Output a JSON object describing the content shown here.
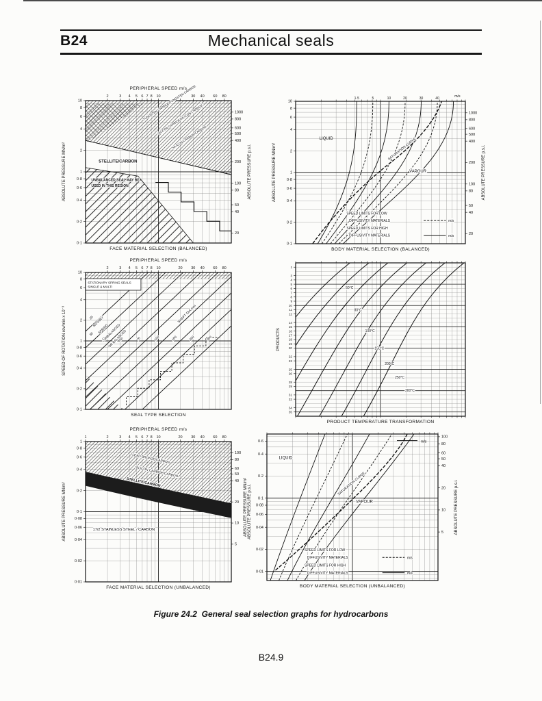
{
  "page": {
    "header_code": "B24",
    "header_title": "Mechanical seals",
    "caption_label": "Figure 24.2",
    "caption_text": "General seal selection graphs for hydrocarbons",
    "footer": "B24.9"
  },
  "chart_data": [
    {
      "id": "face-balanced",
      "type": "line",
      "title": "FACE MATERIAL SELECTION (BALANCED)",
      "top_axis": {
        "label": "PERIPHERAL SPEED m/s",
        "scale": "log",
        "range": [
          1,
          100
        ],
        "ticks": [
          "2",
          "3",
          "4",
          "5",
          "6",
          "7",
          "8",
          "10",
          "20",
          "30",
          "40",
          "60",
          "80"
        ]
      },
      "left_axis": {
        "label": "ABSOLUTE PRESSURE MN/m²",
        "scale": "log",
        "range": [
          10,
          0.1
        ],
        "ticks": [
          "10",
          "8",
          "6",
          "4",
          "2",
          "1",
          "0·8",
          "0·6",
          "0·4",
          "0·2",
          "0·1"
        ]
      },
      "right_axis": {
        "label": "ABSOLUTE PRESSURE p.s.i.",
        "scale": "log",
        "range": [
          1450,
          14.5
        ],
        "ticks": [
          "1000",
          "800",
          "600",
          "500",
          "400",
          "200",
          "100",
          "80",
          "50",
          "40",
          "20"
        ]
      },
      "grid": "log-log",
      "annotations": [
        {
          "text": "TUNGSTEN CARBIDE/TUNGSTEN CARBIDE",
          "x": 0.4,
          "y": 0.14,
          "rotate": -33,
          "halo": true,
          "size": 4.4
        },
        {
          "text": "SILICON CARBIDE/SILICON CARBIDE",
          "x": 0.5,
          "y": 0.24,
          "rotate": -33,
          "halo": true,
          "size": 4.4
        },
        {
          "text": "SILICON CARBIDE/CARBON",
          "x": 0.6,
          "y": 0.34,
          "rotate": -33,
          "halo": true,
          "size": 4.4
        },
        {
          "text": "STELLITE/CARBON",
          "x": 0.09,
          "y": 0.435,
          "bold": true,
          "halo": true,
          "size": 6
        },
        {
          "text": "UNBALANCED SEAL MAY BE",
          "x": 0.04,
          "y": 0.565,
          "bold": true,
          "halo": true,
          "size": 5
        },
        {
          "text": "USED IN THIS REGION",
          "x": 0.04,
          "y": 0.605,
          "bold": true,
          "halo": true,
          "size": 5
        }
      ]
    },
    {
      "id": "body-balanced",
      "type": "line",
      "title": "BODY MATERIAL SELECTION (BALANCED)",
      "top_axis": {
        "scale": "log",
        "range": [
          1,
          100
        ],
        "ticks": []
      },
      "left_axis": {
        "label": "ABSOLUTE PRESSURE MN/m²",
        "scale": "log",
        "range": [
          10,
          0.1
        ],
        "ticks": [
          "10",
          "8",
          "6",
          "4",
          "2",
          "1",
          "0·8",
          "0·6",
          "0·4",
          "0·2",
          "0·1"
        ]
      },
      "right_axis": {
        "label": "ABSOLUTE PRESSURE p.s.i.",
        "scale": "log",
        "range": [
          1450,
          14.5
        ],
        "ticks": [
          "1000",
          "800",
          "600",
          "500",
          "400",
          "200",
          "100",
          "80",
          "50",
          "40",
          "20"
        ]
      },
      "grid": "log-log",
      "curve_labels": [
        "1·5",
        "5",
        "10",
        "20",
        "30",
        "40"
      ],
      "unit_label": "m/s",
      "annotations": [
        {
          "text": "LIQUID",
          "x": 0.14,
          "y": 0.27,
          "size": 6
        },
        {
          "text": "VAPOUR",
          "x": 0.67,
          "y": 0.5,
          "size": 6,
          "halo": true
        },
        {
          "text": "SATURATION CURVE",
          "x": 0.55,
          "y": 0.415,
          "rotate": -38,
          "size": 5,
          "halo": true
        },
        {
          "text": "m/s",
          "x": 0.97,
          "y": -0.03,
          "anchor": "end",
          "size": 5.2
        }
      ],
      "legend": [
        {
          "lines": [
            "SPEED LIMITS FOR LOW",
            "DIFFUSIVITY MATERIALS"
          ],
          "line_style": "dashed",
          "unit": "m/s"
        },
        {
          "lines": [
            "SPEED LIMITS FOR HIGH",
            "DIFFUSIVITY MATERIALS"
          ],
          "line_style": "solid",
          "unit": "m/s"
        }
      ]
    },
    {
      "id": "seal-type",
      "type": "line",
      "title": "SEAL TYPE SELECTION",
      "top_axis": {
        "label": "PERIPHERAL SPEED m/s",
        "scale": "log",
        "range": [
          1,
          100
        ],
        "ticks": [
          "2",
          "3",
          "4",
          "5",
          "6",
          "7",
          "8",
          "10",
          "20",
          "30",
          "40",
          "60",
          "80"
        ]
      },
      "left_axis": {
        "label": "SPEED OF ROTATION rev/min x 10⁻³",
        "scale": "log",
        "range": [
          10,
          0.1
        ],
        "ticks": [
          "10",
          "8",
          "6",
          "4",
          "2",
          "1",
          "0·8",
          "0·6",
          "0·4",
          "0·2",
          "0·1"
        ]
      },
      "grid": "log-log",
      "shaft_dia_values": [
        "25",
        "30",
        "40",
        "50",
        "75",
        "100",
        "150",
        "200",
        "300"
      ],
      "annotations": [
        {
          "text": "STATIONARY SPRING SEALS",
          "x": 0.015,
          "y": 0.082,
          "size": 4.6
        },
        {
          "text": "SINGLE & MULTI",
          "x": 0.015,
          "y": 0.112,
          "size": 4.6
        },
        {
          "text": "ROTARY",
          "x": 0.06,
          "y": 0.4,
          "rotate": -45,
          "size": 4.8,
          "halo": true
        },
        {
          "text": "SPRING",
          "x": 0.095,
          "y": 0.45,
          "rotate": -45,
          "size": 4.8,
          "halo": true
        },
        {
          "text": "UNBALANCED",
          "x": 0.13,
          "y": 0.5,
          "rotate": -45,
          "size": 4.8,
          "halo": true
        },
        {
          "text": "OR BALANCED",
          "x": 0.165,
          "y": 0.55,
          "rotate": -45,
          "size": 4.8,
          "halo": true
        },
        {
          "text": "SHAFT DIA mm",
          "x": 0.64,
          "y": 0.37,
          "rotate": -45,
          "size": 5,
          "halo": true
        }
      ]
    },
    {
      "id": "product-temp",
      "type": "line",
      "title": "PRODUCT TEMPERATURE TRANSFORMATION",
      "top_axis": {
        "scale": "log",
        "range": [
          1,
          100
        ],
        "ticks": []
      },
      "left_axis": {
        "label": "PRODUCTS",
        "scale": "linear",
        "range": [
          0,
          36
        ],
        "ticks": [
          "1",
          "3",
          "4",
          "5",
          "6",
          "7",
          "8",
          "9",
          "10",
          "11",
          "12",
          "14",
          "15",
          "16",
          "17",
          "18",
          "19",
          "20",
          "22",
          "23",
          "25",
          "26",
          "28",
          "29",
          "31",
          "32",
          "34",
          "35"
        ]
      },
      "grid": "log-linear",
      "curve_labels": [
        "50°C",
        "80°C",
        "100°C",
        "150°C",
        "200°C",
        "250°C",
        "300°C"
      ],
      "annotations": []
    },
    {
      "id": "face-unbalanced",
      "type": "line",
      "title": "FACE MATERIAL SELECTION (UNBALANCED)",
      "top_axis": {
        "label": "PERIPHERAL SPEED m/s",
        "scale": "log",
        "range": [
          1,
          100
        ],
        "ticks": [
          "1",
          "2",
          "3",
          "4",
          "5",
          "6",
          "7",
          "8",
          "10",
          "20",
          "30",
          "40",
          "60",
          "80"
        ]
      },
      "left_axis": {
        "label": "ABSOLUTE PRESSURE MN/m²",
        "scale": "log",
        "range": [
          1,
          0.01
        ],
        "ticks": [
          "1",
          "0·8",
          "0·6",
          "0·4",
          "0·2",
          "0·1",
          "0·08",
          "0·06",
          "0·04",
          "0·02",
          "0·01"
        ]
      },
      "right_axis": {
        "label": "ABSOLUTE PRESSURE p.s.i.",
        "scale": "log",
        "range": [
          145,
          1.45
        ],
        "ticks": [
          "100",
          "80",
          "60",
          "50",
          "40",
          "20",
          "10",
          "5"
        ]
      },
      "grid": "log-log",
      "annotations": [
        {
          "text": "LEAD BRONZE/CARBON",
          "x": 0.32,
          "y": 0.1,
          "rotate": 12,
          "halo": true,
          "size": 4.8
        },
        {
          "text": "SILICON CARBIDE/CARBON",
          "x": 0.34,
          "y": 0.19,
          "rotate": 12,
          "halo": true,
          "size": 4.8
        },
        {
          "text": "STELLITE/CARBON",
          "x": 0.28,
          "y": 0.272,
          "rotate": 12,
          "bold": true,
          "halo": true,
          "size": 5.4
        },
        {
          "text": "17/2 STAINLESS STEEL / CARBON",
          "x": 0.05,
          "y": 0.635,
          "size": 5.6,
          "halo": true
        }
      ]
    },
    {
      "id": "body-unbalanced",
      "type": "line",
      "title": "BODY MATERIAL SELECTION (UNBALANCED)",
      "top_axis": {
        "scale": "log",
        "range": [
          1,
          100
        ],
        "ticks": []
      },
      "left_axis": {
        "label": "ABSOLUTE PRESSURE MN/m²",
        "scale": "log",
        "range": [
          0.75,
          0.0075
        ],
        "ticks": [
          "0·6",
          "0·4",
          "0·2",
          "0·1",
          "0·08",
          "0·06",
          "0·04",
          "0·02",
          "0·01"
        ]
      },
      "right_axis": {
        "label": "ABSOLUTE PRESSURE p.s.i.",
        "scale": "log",
        "range": [
          108.75,
          1.0875
        ],
        "ticks": [
          "100",
          "80",
          "60",
          "50",
          "40",
          "20",
          "10",
          "5"
        ]
      },
      "grid": "log-log",
      "unit_label": "m/s",
      "annotations": [
        {
          "text": "LIQUID",
          "x": 0.07,
          "y": 0.17,
          "size": 6,
          "halo": true
        },
        {
          "text": "VAPOUR",
          "x": 0.52,
          "y": 0.47,
          "size": 6,
          "halo": true
        },
        {
          "text": "SATURATION CURVE",
          "x": 0.42,
          "y": 0.42,
          "rotate": -40,
          "size": 5,
          "halo": true
        },
        {
          "text": "m/s",
          "x": 0.9,
          "y": 0.058,
          "size": 5.2
        }
      ],
      "legend": [
        {
          "lines": [
            "SPEED LIMITS FOR LOW",
            "DIFFUSIVITY MATERIALS"
          ],
          "line_style": "dashed",
          "unit": "m/s"
        },
        {
          "lines": [
            "SPEED LIMITS FOR HIGH",
            "DIFFUSIVITY MATERIALS"
          ],
          "line_style": "solid",
          "unit": "m/s"
        }
      ]
    }
  ]
}
